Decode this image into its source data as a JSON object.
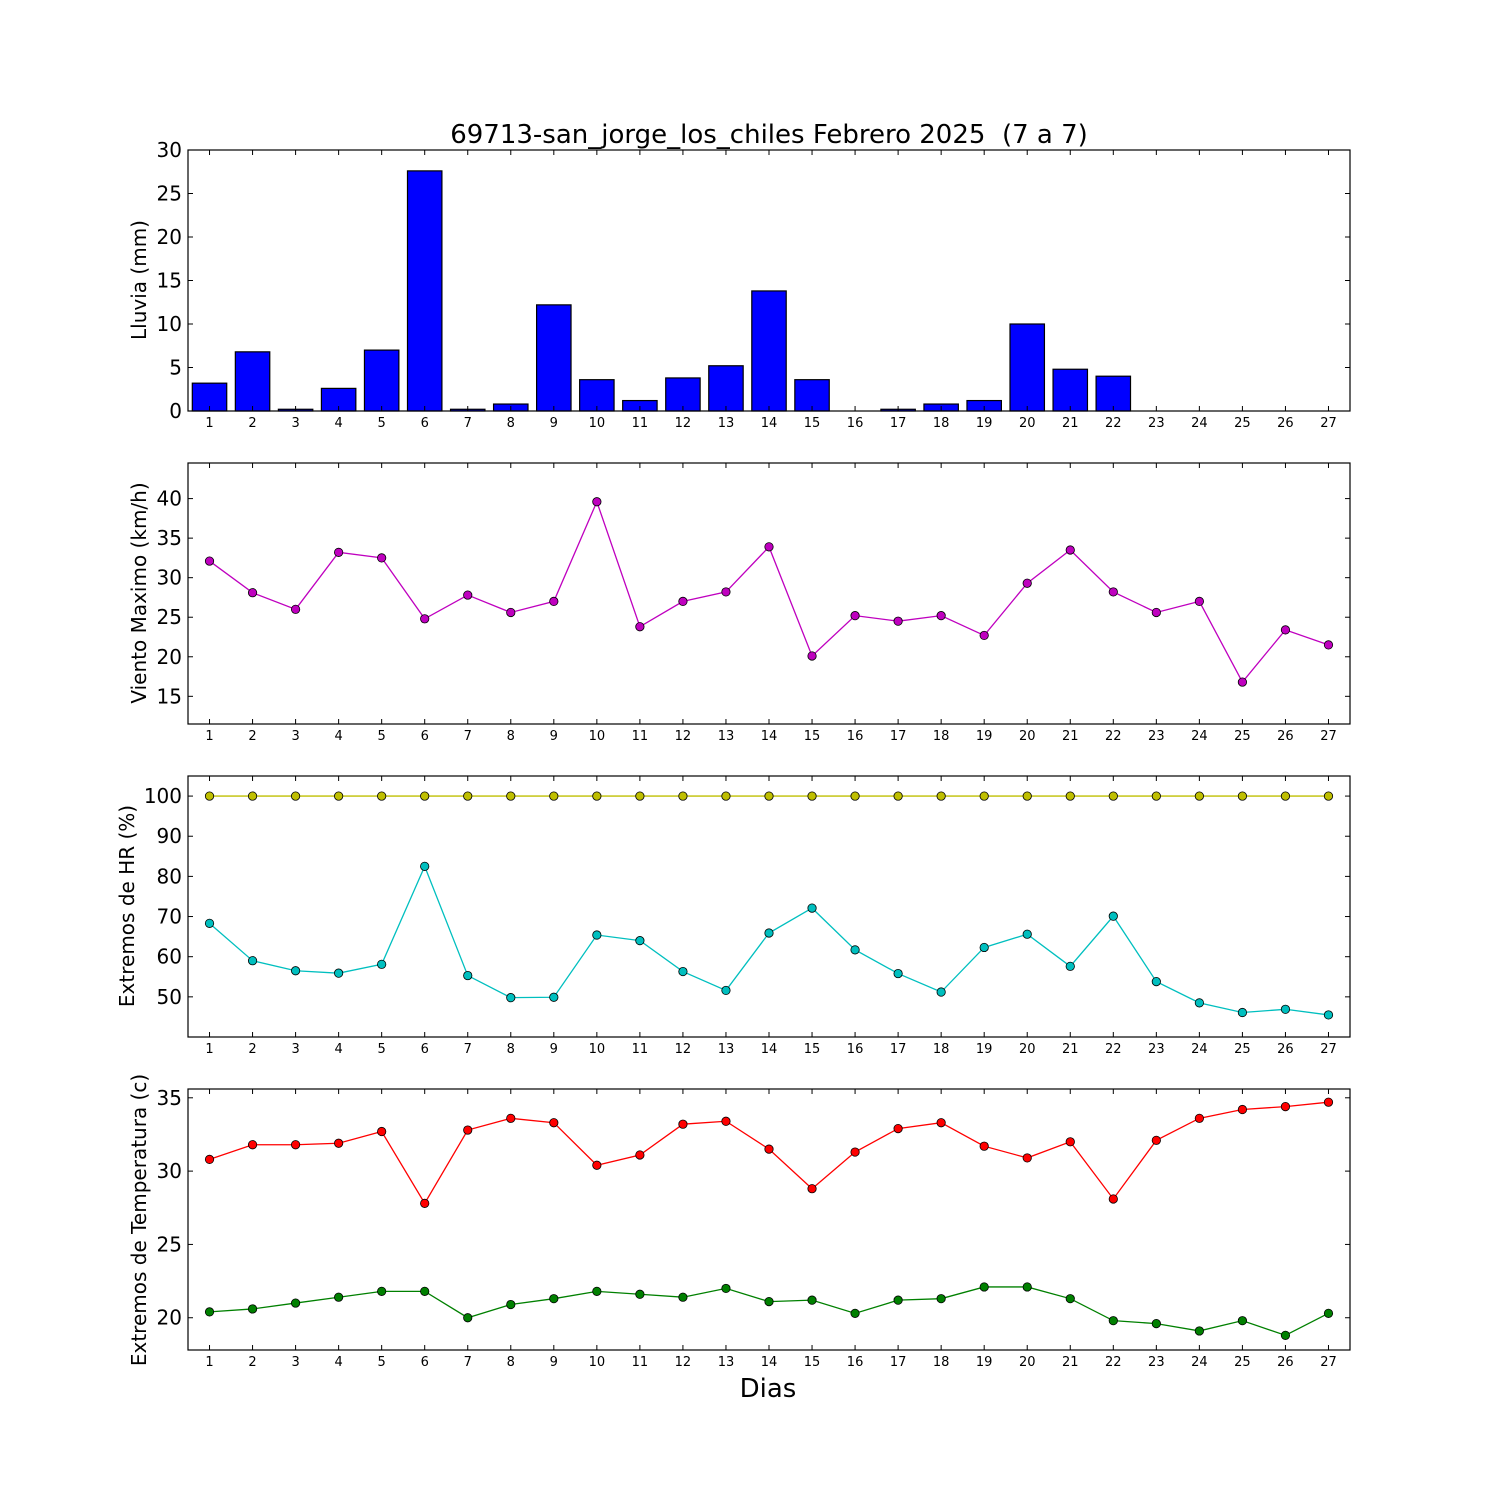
{
  "chart_data": [
    {
      "type": "bar",
      "title": "69713-san_jorge_los_chiles Febrero 2025  (7 a 7)",
      "ylabel": "Lluvia (mm)",
      "xlabel": "",
      "ylim": [
        0,
        30
      ],
      "yticks": [
        0,
        5,
        10,
        15,
        20,
        25,
        30
      ],
      "categories": [
        1,
        2,
        3,
        4,
        5,
        6,
        7,
        8,
        9,
        10,
        11,
        12,
        13,
        14,
        15,
        16,
        17,
        18,
        19,
        20,
        21,
        22,
        23,
        24,
        25,
        26,
        27
      ],
      "values": [
        3.2,
        6.8,
        0.2,
        2.6,
        7.0,
        27.6,
        0.2,
        0.8,
        12.2,
        3.6,
        1.2,
        3.8,
        5.2,
        13.8,
        3.6,
        0.0,
        0.2,
        0.8,
        1.2,
        10.0,
        4.8,
        4.0,
        0.0,
        0.0,
        0.0,
        0.0,
        0.0
      ],
      "colors": {
        "bar": "#0000ff"
      }
    },
    {
      "type": "line",
      "title": "",
      "ylabel": "Viento Maximo (km/h)",
      "xlabel": "",
      "ylim": [
        11.5,
        44.5
      ],
      "yticks": [
        15,
        20,
        25,
        30,
        35,
        40
      ],
      "x": [
        1,
        2,
        3,
        4,
        5,
        6,
        7,
        8,
        9,
        10,
        11,
        12,
        13,
        14,
        15,
        16,
        17,
        18,
        19,
        20,
        21,
        22,
        23,
        24,
        25,
        26,
        27
      ],
      "series": [
        {
          "values": [
            32.1,
            28.1,
            26.0,
            33.2,
            32.5,
            24.8,
            27.8,
            25.6,
            27.0,
            39.6,
            23.8,
            27.0,
            28.2,
            33.9,
            20.1,
            25.2,
            24.5,
            25.2,
            22.7,
            29.3,
            33.5,
            28.2,
            25.6,
            27.0,
            16.8,
            23.4,
            21.5
          ],
          "color": "#bf00bf"
        }
      ]
    },
    {
      "type": "line",
      "title": "",
      "ylabel": "Extremos de HR (%)",
      "xlabel": "",
      "ylim": [
        40,
        105
      ],
      "yticks": [
        50,
        60,
        70,
        80,
        90,
        100
      ],
      "x": [
        1,
        2,
        3,
        4,
        5,
        6,
        7,
        8,
        9,
        10,
        11,
        12,
        13,
        14,
        15,
        16,
        17,
        18,
        19,
        20,
        21,
        22,
        23,
        24,
        25,
        26,
        27
      ],
      "series": [
        {
          "values": [
            100,
            100,
            100,
            100,
            100,
            100,
            100,
            100,
            100,
            100,
            100,
            100,
            100,
            100,
            100,
            100,
            100,
            100,
            100,
            100,
            100,
            100,
            100,
            100,
            100,
            100,
            100
          ],
          "color": "#bfbf00"
        },
        {
          "values": [
            68.3,
            59.0,
            56.5,
            55.9,
            58.1,
            82.5,
            55.3,
            49.8,
            49.9,
            65.4,
            64.0,
            56.3,
            51.6,
            65.9,
            72.1,
            61.7,
            55.8,
            51.2,
            62.3,
            65.6,
            57.6,
            70.1,
            53.8,
            48.5,
            46.1,
            46.9,
            45.5
          ],
          "color": "#00bfbf"
        }
      ]
    },
    {
      "type": "line",
      "title": "",
      "ylabel": "Extremos de Temperatura (c)",
      "xlabel": "Dias",
      "ylim": [
        17.8,
        35.6
      ],
      "yticks": [
        20,
        25,
        30,
        35
      ],
      "x": [
        1,
        2,
        3,
        4,
        5,
        6,
        7,
        8,
        9,
        10,
        11,
        12,
        13,
        14,
        15,
        16,
        17,
        18,
        19,
        20,
        21,
        22,
        23,
        24,
        25,
        26,
        27
      ],
      "series": [
        {
          "values": [
            30.8,
            31.8,
            31.8,
            31.9,
            32.7,
            27.8,
            32.8,
            33.6,
            33.3,
            30.4,
            31.1,
            33.2,
            33.4,
            31.5,
            28.8,
            31.3,
            32.9,
            33.3,
            31.7,
            30.9,
            32.0,
            28.1,
            32.1,
            33.6,
            34.2,
            34.4,
            34.7
          ],
          "color": "#ff0000"
        },
        {
          "values": [
            20.4,
            20.6,
            21.0,
            21.4,
            21.8,
            21.8,
            20.0,
            20.9,
            21.3,
            21.8,
            21.6,
            21.4,
            22.0,
            21.1,
            21.2,
            20.3,
            21.2,
            21.3,
            22.1,
            22.1,
            21.3,
            19.8,
            19.6,
            19.1,
            19.8,
            18.8,
            20.3
          ],
          "color": "#008000"
        }
      ]
    }
  ]
}
